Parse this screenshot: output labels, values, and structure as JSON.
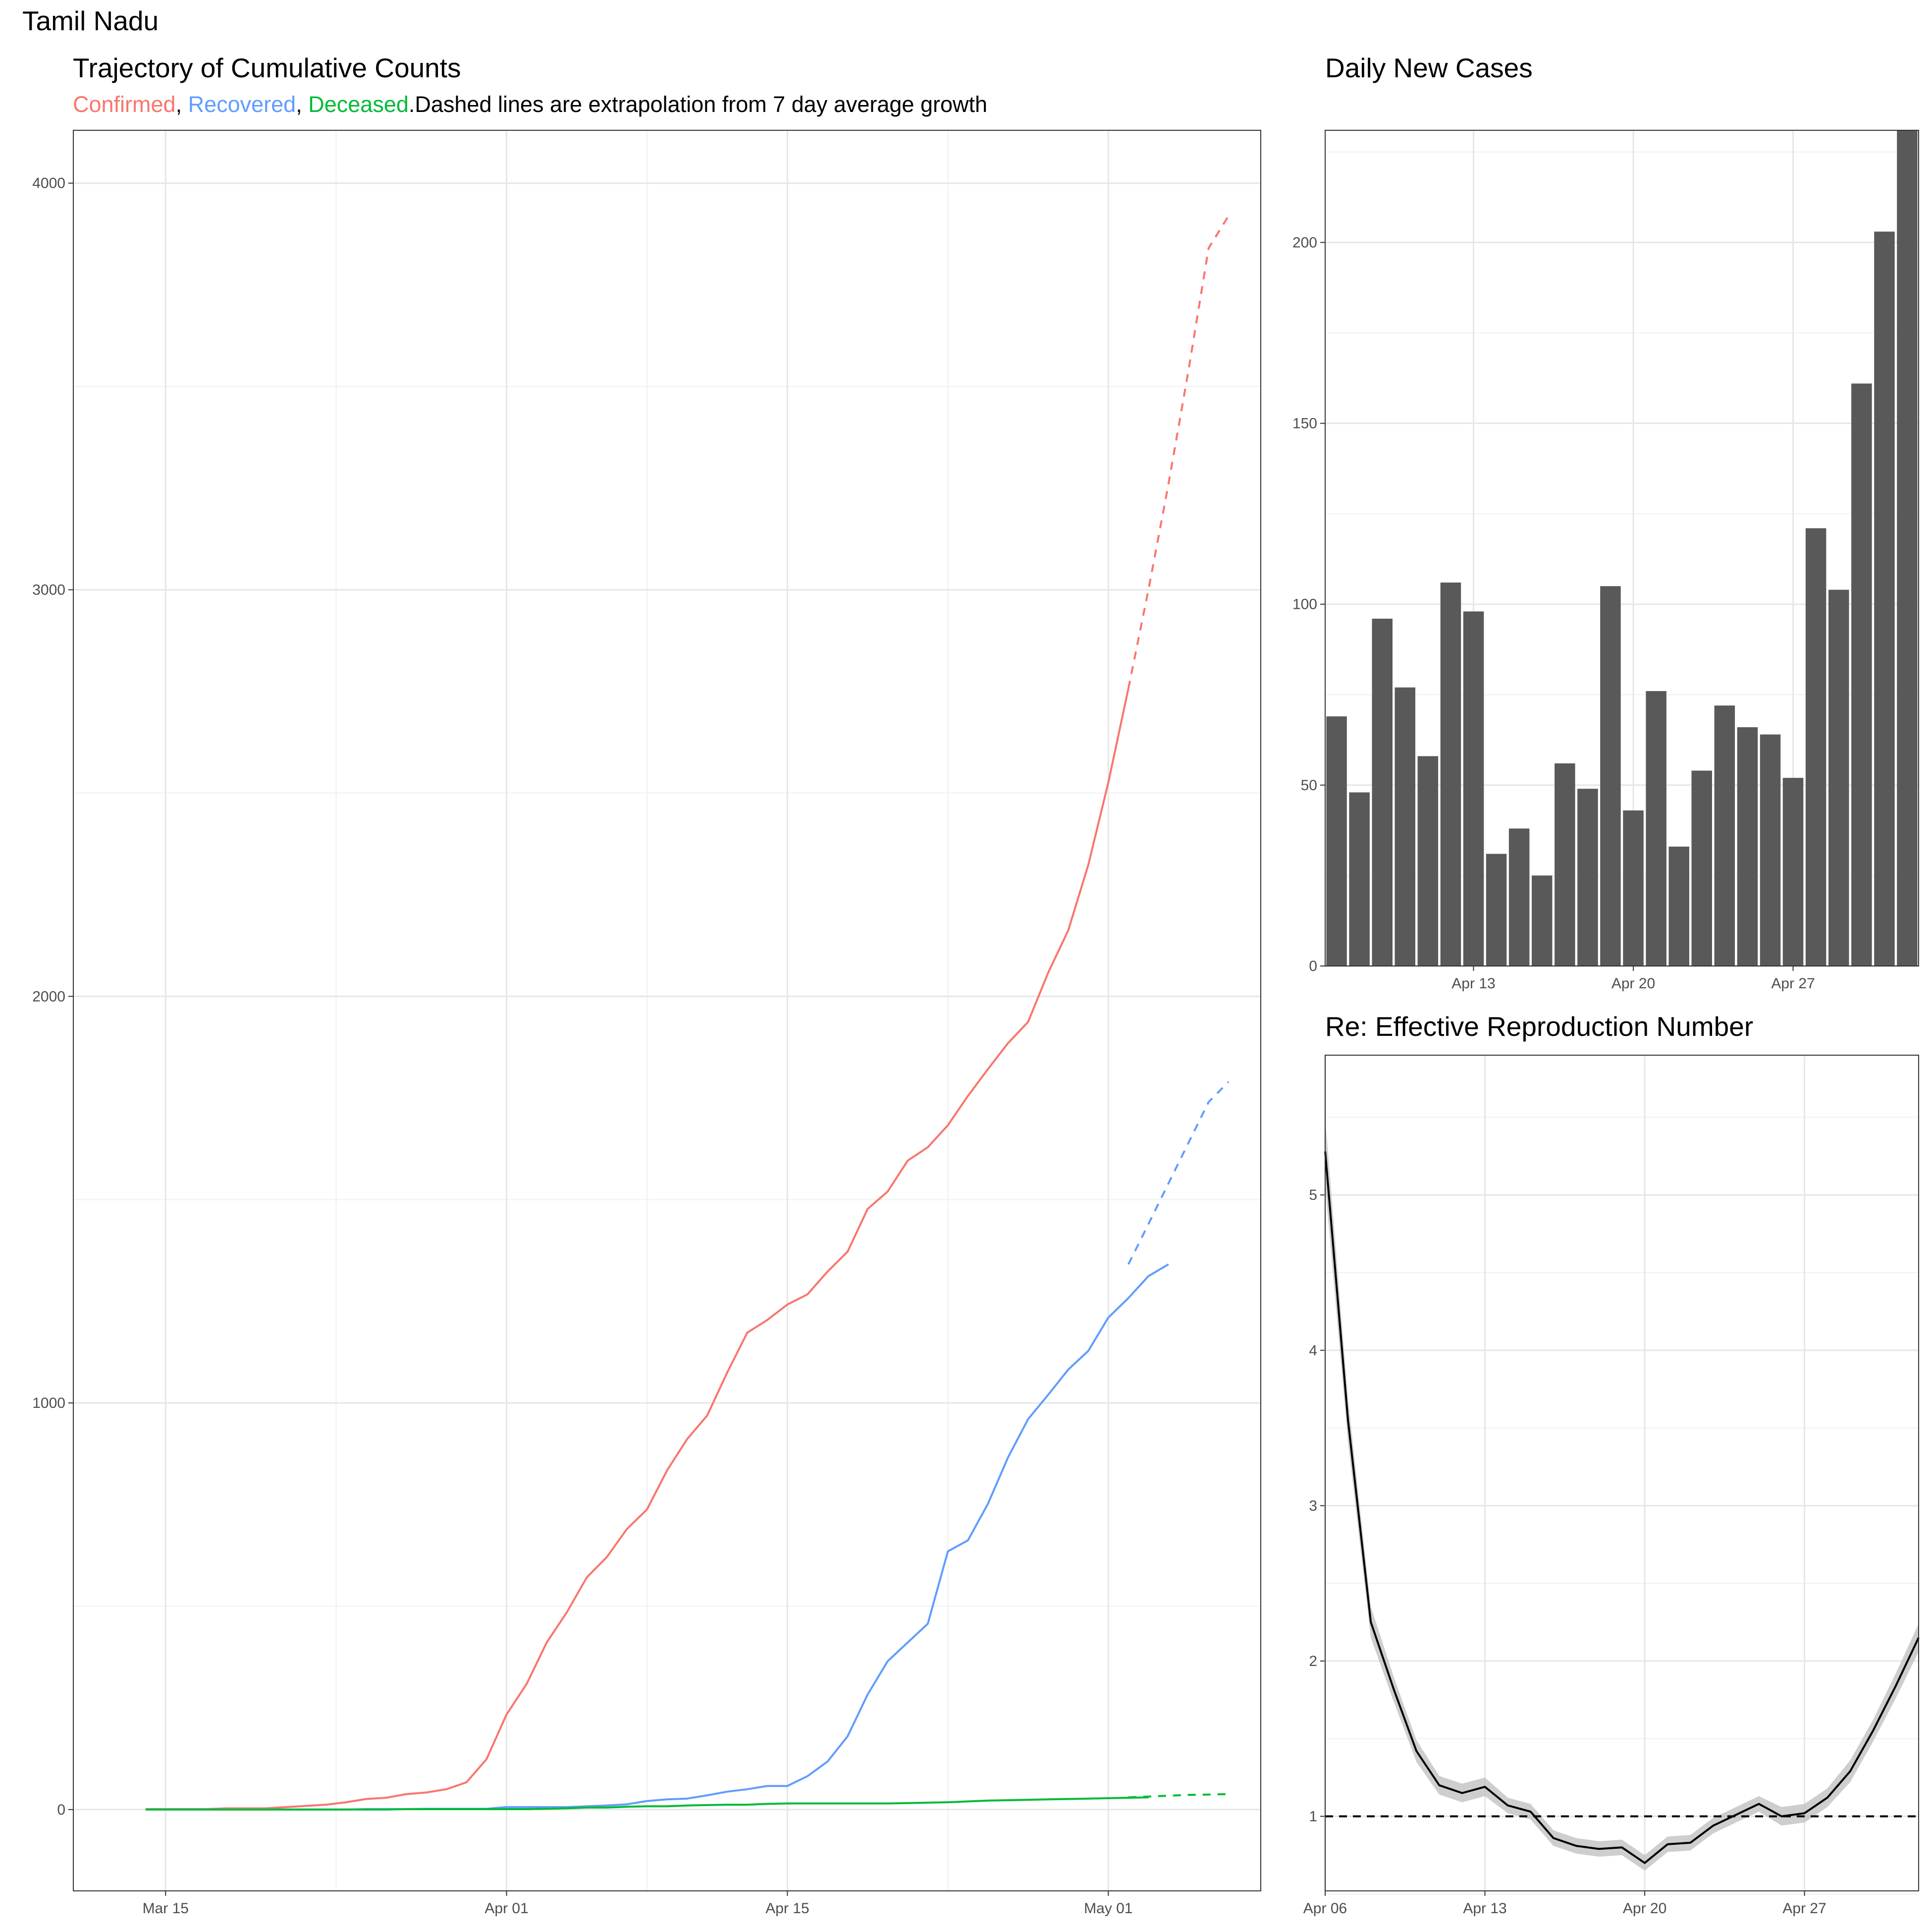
{
  "state_title": "Tamil Nadu",
  "subtitle": {
    "confirmed": "Confirmed",
    "sep1": ", ",
    "recovered": "Recovered",
    "sep2": ", ",
    "deceased": "Deceased",
    "rest": ".Dashed lines are extrapolation from 7 day average growth"
  },
  "colors": {
    "confirmed": "#F8766D",
    "recovered": "#619CFF",
    "deceased": "#00BA38",
    "bars": "#595959",
    "line": "#000000",
    "band": "#bdbdbd"
  },
  "chart_data": [
    {
      "type": "line",
      "title": "Trajectory of Cumulative Counts",
      "xlabel": "",
      "ylabel": "",
      "x_start": "Mar 14",
      "x_ticks": [
        "Mar 15",
        "Apr 01",
        "Apr 15",
        "May 01"
      ],
      "y_ticks": [
        0,
        1000,
        2000,
        3000,
        4000
      ],
      "ylim": [
        -200,
        4130
      ],
      "xlim_days": [
        -3.6,
        55.6
      ],
      "grid": true,
      "series": [
        {
          "name": "Confirmed",
          "style": "solid",
          "start_day": 0,
          "values": [
            1,
            1,
            1,
            1,
            3,
            3,
            3,
            6,
            9,
            12,
            18,
            26,
            29,
            38,
            42,
            50,
            67,
            124,
            234,
            309,
            411,
            485,
            571,
            621,
            690,
            738,
            834,
            911,
            969,
            1075,
            1173,
            1204,
            1242,
            1267,
            1323,
            1372,
            1477,
            1520,
            1596,
            1629,
            1683,
            1755,
            1821,
            1885,
            1937,
            2058,
            2162,
            2323,
            2526,
            2757
          ]
        },
        {
          "name": "Confirmed",
          "style": "dashed",
          "start_day": 49,
          "values": [
            2757,
            3000,
            3260,
            3540,
            3840,
            3920
          ]
        },
        {
          "name": "Recovered",
          "style": "solid",
          "start_day": 0,
          "values": [
            0,
            0,
            0,
            0,
            0,
            0,
            0,
            0,
            0,
            0,
            0,
            1,
            1,
            1,
            2,
            2,
            2,
            2,
            6,
            6,
            6,
            6,
            8,
            10,
            13,
            21,
            25,
            27,
            35,
            44,
            50,
            58,
            58,
            82,
            118,
            180,
            283,
            365,
            411,
            457,
            635,
            662,
            752,
            866,
            960,
            1020,
            1082,
            1128,
            1210,
            1258,
            1312,
            1341
          ]
        },
        {
          "name": "Recovered",
          "style": "dashed",
          "start_day": 49,
          "values": [
            1341,
            1440,
            1540,
            1640,
            1740,
            1790
          ]
        },
        {
          "name": "Deceased",
          "style": "solid",
          "start_day": 0,
          "values": [
            0,
            0,
            0,
            0,
            0,
            0,
            0,
            0,
            0,
            0,
            0,
            0,
            0,
            1,
            1,
            1,
            1,
            1,
            1,
            1,
            2,
            3,
            5,
            5,
            7,
            8,
            8,
            10,
            11,
            12,
            12,
            14,
            15,
            15,
            15,
            15,
            15,
            15,
            16,
            17,
            18,
            20,
            22,
            23,
            24,
            25,
            26,
            27,
            28,
            29,
            30
          ]
        },
        {
          "name": "Deceased",
          "style": "dashed",
          "start_day": 49,
          "values": [
            30,
            32,
            34,
            36,
            37,
            38
          ]
        }
      ]
    },
    {
      "type": "bar",
      "title": "Daily New Cases",
      "xlabel": "",
      "ylabel": "",
      "x_ticks": [
        "Apr 13",
        "Apr 20",
        "Apr 27"
      ],
      "y_ticks": [
        0,
        50,
        100,
        150,
        200
      ],
      "ylim": [
        0,
        231
      ],
      "categories": [
        "Apr 07",
        "Apr 08",
        "Apr 09",
        "Apr 10",
        "Apr 11",
        "Apr 12",
        "Apr 13",
        "Apr 14",
        "Apr 15",
        "Apr 16",
        "Apr 17",
        "Apr 18",
        "Apr 19",
        "Apr 20",
        "Apr 21",
        "Apr 22",
        "Apr 23",
        "Apr 24",
        "Apr 25",
        "Apr 26",
        "Apr 27",
        "Apr 28",
        "Apr 29",
        "Apr 30",
        "May 01",
        "May 02"
      ],
      "values": [
        69,
        48,
        96,
        77,
        58,
        106,
        98,
        31,
        38,
        25,
        56,
        49,
        105,
        43,
        76,
        33,
        54,
        72,
        66,
        64,
        52,
        121,
        104,
        161,
        203,
        231
      ]
    },
    {
      "type": "line",
      "title": "Re: Effective Reproduction Number",
      "xlabel": "",
      "ylabel": "",
      "x_ticks": [
        "Apr 06",
        "Apr 13",
        "Apr 20",
        "Apr 27"
      ],
      "y_ticks": [
        1,
        2,
        3,
        4,
        5
      ],
      "ylim": [
        0.52,
        5.9
      ],
      "reference_line": 1,
      "x_start": "Apr 06",
      "series": [
        {
          "name": "Re",
          "values": [
            5.28,
            3.55,
            2.25,
            1.82,
            1.42,
            1.2,
            1.15,
            1.19,
            1.07,
            1.03,
            0.86,
            0.81,
            0.79,
            0.8,
            0.7,
            0.82,
            0.83,
            0.94,
            1.01,
            1.08,
            1.0,
            1.02,
            1.12,
            1.29,
            1.55,
            1.84,
            2.15
          ],
          "band_width": [
            0.22,
            0.14,
            0.1,
            0.08,
            0.07,
            0.06,
            0.06,
            0.06,
            0.05,
            0.05,
            0.05,
            0.05,
            0.05,
            0.05,
            0.05,
            0.05,
            0.05,
            0.05,
            0.05,
            0.05,
            0.06,
            0.06,
            0.06,
            0.07,
            0.07,
            0.08,
            0.09
          ]
        }
      ]
    }
  ]
}
